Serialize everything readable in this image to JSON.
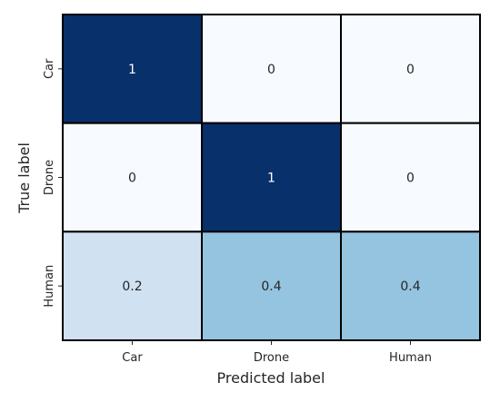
{
  "chart_data": {
    "type": "heatmap",
    "title": "",
    "xlabel": "Predicted label",
    "ylabel": "True label",
    "x_categories": [
      "Car",
      "Drone",
      "Human"
    ],
    "y_categories": [
      "Car",
      "Drone",
      "Human"
    ],
    "values": [
      [
        1,
        0,
        0
      ],
      [
        0,
        1,
        0
      ],
      [
        0.2,
        0.4,
        0.4
      ]
    ],
    "value_range": [
      0,
      1
    ],
    "colormap": "Blues",
    "colors": {
      "low": "#f7fbff",
      "high": "#08306b",
      "grid_line": "#000000",
      "dark_text": "#262626",
      "light_text": "#ffffff",
      "axis_text": "#262626"
    },
    "colorbar": false,
    "legend": "none"
  }
}
